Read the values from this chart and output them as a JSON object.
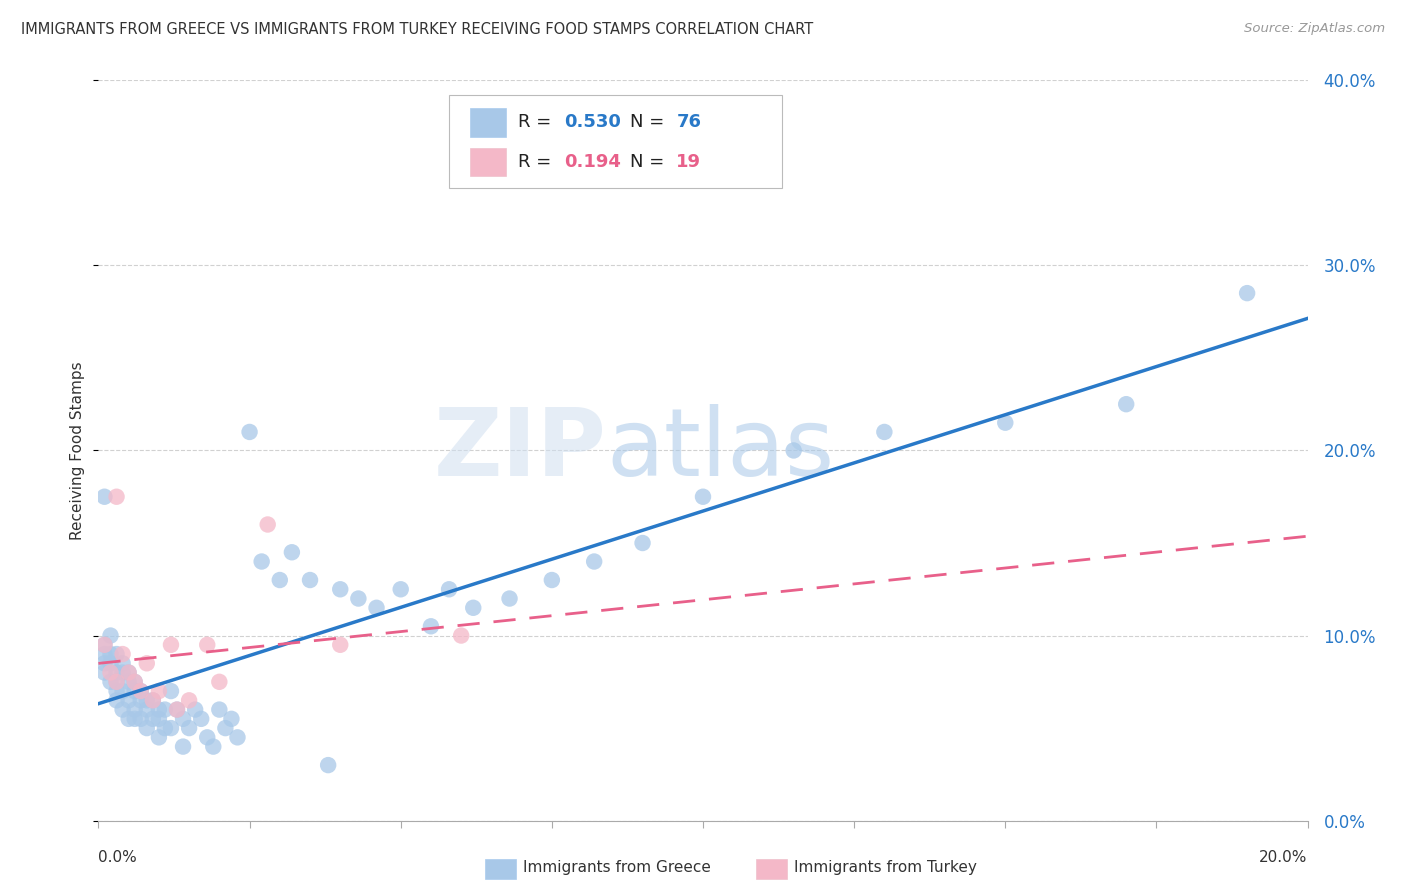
{
  "title": "IMMIGRANTS FROM GREECE VS IMMIGRANTS FROM TURKEY RECEIVING FOOD STAMPS CORRELATION CHART",
  "source": "Source: ZipAtlas.com",
  "ylabel": "Receiving Food Stamps",
  "xlim": [
    0.0,
    0.2
  ],
  "ylim": [
    0.0,
    0.4
  ],
  "yticks": [
    0.0,
    0.1,
    0.2,
    0.3,
    0.4
  ],
  "ytick_labels": [
    "0.0%",
    "10.0%",
    "20.0%",
    "30.0%",
    "40.0%"
  ],
  "xticks": [
    0.0,
    0.025,
    0.05,
    0.075,
    0.1,
    0.125,
    0.15,
    0.175,
    0.2
  ],
  "greece_R": 0.53,
  "greece_N": 76,
  "turkey_R": 0.194,
  "turkey_N": 19,
  "greece_color": "#a8c8e8",
  "turkey_color": "#f4b8c8",
  "greece_line_color": "#2979c8",
  "turkey_line_color": "#e8608a",
  "watermark_zip": "ZIP",
  "watermark_atlas": "atlas",
  "background_color": "#ffffff",
  "grid_color": "#cccccc",
  "title_color": "#333333",
  "greece_x": [
    0.001,
    0.001,
    0.001,
    0.001,
    0.001,
    0.002,
    0.002,
    0.002,
    0.002,
    0.003,
    0.003,
    0.003,
    0.003,
    0.003,
    0.004,
    0.004,
    0.004,
    0.004,
    0.005,
    0.005,
    0.005,
    0.005,
    0.006,
    0.006,
    0.006,
    0.006,
    0.007,
    0.007,
    0.007,
    0.008,
    0.008,
    0.008,
    0.009,
    0.009,
    0.01,
    0.01,
    0.01,
    0.011,
    0.011,
    0.012,
    0.012,
    0.013,
    0.014,
    0.014,
    0.015,
    0.016,
    0.017,
    0.018,
    0.019,
    0.02,
    0.021,
    0.022,
    0.023,
    0.025,
    0.027,
    0.03,
    0.032,
    0.035,
    0.038,
    0.04,
    0.043,
    0.046,
    0.05,
    0.055,
    0.058,
    0.062,
    0.068,
    0.075,
    0.082,
    0.09,
    0.1,
    0.115,
    0.13,
    0.15,
    0.17,
    0.19
  ],
  "greece_y": [
    0.175,
    0.095,
    0.09,
    0.085,
    0.08,
    0.1,
    0.09,
    0.085,
    0.075,
    0.09,
    0.08,
    0.075,
    0.07,
    0.065,
    0.085,
    0.08,
    0.07,
    0.06,
    0.08,
    0.075,
    0.065,
    0.055,
    0.075,
    0.07,
    0.06,
    0.055,
    0.07,
    0.065,
    0.055,
    0.065,
    0.06,
    0.05,
    0.065,
    0.055,
    0.06,
    0.055,
    0.045,
    0.06,
    0.05,
    0.07,
    0.05,
    0.06,
    0.055,
    0.04,
    0.05,
    0.06,
    0.055,
    0.045,
    0.04,
    0.06,
    0.05,
    0.055,
    0.045,
    0.21,
    0.14,
    0.13,
    0.145,
    0.13,
    0.03,
    0.125,
    0.12,
    0.115,
    0.125,
    0.105,
    0.125,
    0.115,
    0.12,
    0.13,
    0.14,
    0.15,
    0.175,
    0.2,
    0.21,
    0.215,
    0.225,
    0.285
  ],
  "turkey_x": [
    0.001,
    0.002,
    0.003,
    0.003,
    0.004,
    0.005,
    0.006,
    0.007,
    0.008,
    0.009,
    0.01,
    0.012,
    0.013,
    0.015,
    0.018,
    0.02,
    0.028,
    0.04,
    0.06
  ],
  "turkey_y": [
    0.095,
    0.08,
    0.175,
    0.075,
    0.09,
    0.08,
    0.075,
    0.07,
    0.085,
    0.065,
    0.07,
    0.095,
    0.06,
    0.065,
    0.095,
    0.075,
    0.16,
    0.095,
    0.1
  ]
}
